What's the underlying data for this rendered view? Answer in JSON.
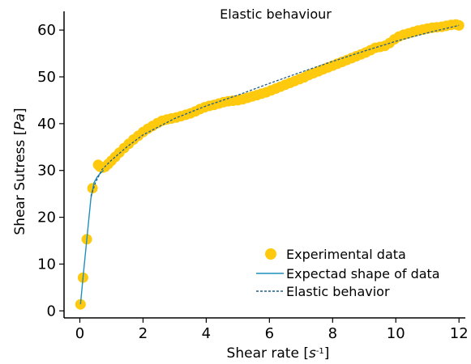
{
  "chart_data": {
    "type": "scatter",
    "title": "Elastic behaviour",
    "xlabel": {
      "main": "Shear rate [",
      "italic": "s",
      "sup": "-1",
      "end": "]"
    },
    "ylabel": {
      "main": "Shear Sutress [",
      "italic": "Pa",
      "end": "]"
    },
    "xlim": [
      -0.5,
      12.2
    ],
    "ylim": [
      -1.5,
      64
    ],
    "xticks": [
      0,
      2,
      4,
      6,
      8,
      10,
      12
    ],
    "yticks": [
      0,
      10,
      20,
      30,
      40,
      50,
      60
    ],
    "legend_position": "lower-right",
    "grid": false,
    "colors": {
      "experimental": "#FFC90E",
      "expected": "#1F8FBF",
      "elastic": "#1F5F8B"
    },
    "series": [
      {
        "name": "Experimental data",
        "kind": "scatter",
        "x": [
          0.02,
          0.1,
          0.22,
          0.4,
          0.58,
          0.64,
          0.72,
          0.8,
          0.9,
          1.0,
          1.12,
          1.25,
          1.4,
          1.55,
          1.7,
          1.85,
          2.0,
          2.15,
          2.3,
          2.45,
          2.6,
          2.75,
          2.9,
          3.05,
          3.2,
          3.35,
          3.5,
          3.65,
          3.8,
          3.95,
          4.1,
          4.25,
          4.4,
          4.55,
          4.7,
          4.85,
          5.0,
          5.15,
          5.3,
          5.45,
          5.6,
          5.75,
          5.9,
          6.05,
          6.2,
          6.35,
          6.5,
          6.65,
          6.8,
          6.95,
          7.1,
          7.25,
          7.4,
          7.55,
          7.7,
          7.85,
          8.0,
          8.15,
          8.3,
          8.45,
          8.6,
          8.75,
          8.9,
          9.05,
          9.2,
          9.35,
          9.5,
          9.65,
          9.8,
          9.95,
          10.1,
          10.25,
          10.4,
          10.55,
          10.7,
          10.85,
          11.0,
          11.15,
          11.3,
          11.45,
          11.6,
          11.75,
          11.9,
          12.0
        ],
        "y": [
          1.4,
          7.1,
          15.3,
          26.2,
          31.2,
          30.8,
          30.6,
          30.8,
          31.4,
          32.1,
          32.9,
          33.8,
          34.8,
          35.7,
          36.6,
          37.4,
          38.2,
          38.9,
          39.5,
          40.1,
          40.6,
          40.9,
          41.1,
          41.3,
          41.6,
          41.9,
          42.2,
          42.6,
          43.1,
          43.5,
          43.8,
          44.0,
          44.3,
          44.6,
          44.8,
          44.9,
          45.0,
          45.2,
          45.5,
          45.8,
          46.1,
          46.4,
          46.7,
          47.1,
          47.5,
          47.9,
          48.3,
          48.7,
          49.1,
          49.5,
          49.9,
          50.4,
          50.8,
          51.2,
          51.6,
          52.0,
          52.4,
          52.8,
          53.2,
          53.6,
          54.0,
          54.4,
          54.8,
          55.2,
          55.7,
          56.2,
          56.4,
          56.6,
          57.2,
          58.0,
          58.6,
          59.0,
          59.3,
          59.6,
          59.9,
          60.1,
          60.3,
          60.5,
          60.6,
          60.7,
          60.9,
          61.1,
          61.2,
          61.0
        ]
      },
      {
        "name": "Expectad shape of data",
        "kind": "line",
        "x": [
          0.02,
          0.1,
          0.22,
          0.35,
          0.45,
          0.55,
          0.62,
          0.68,
          0.75
        ],
        "y": [
          1.4,
          7.1,
          15.3,
          24.0,
          27.4,
          28.6,
          29.2,
          29.6,
          30.0
        ]
      },
      {
        "name": "Elastic behavior",
        "kind": "dashed",
        "x": [
          0.35,
          0.5,
          0.7,
          1.0,
          1.5,
          2.0,
          3.0,
          4.0,
          5.0,
          6.0,
          7.0,
          8.0,
          9.0,
          10.0,
          11.0,
          12.0
        ],
        "y": [
          24.5,
          27.5,
          30.2,
          32.2,
          35.1,
          37.6,
          41.1,
          43.8,
          46.1,
          48.6,
          51.0,
          53.3,
          55.5,
          57.6,
          59.4,
          61.0
        ]
      }
    ]
  }
}
